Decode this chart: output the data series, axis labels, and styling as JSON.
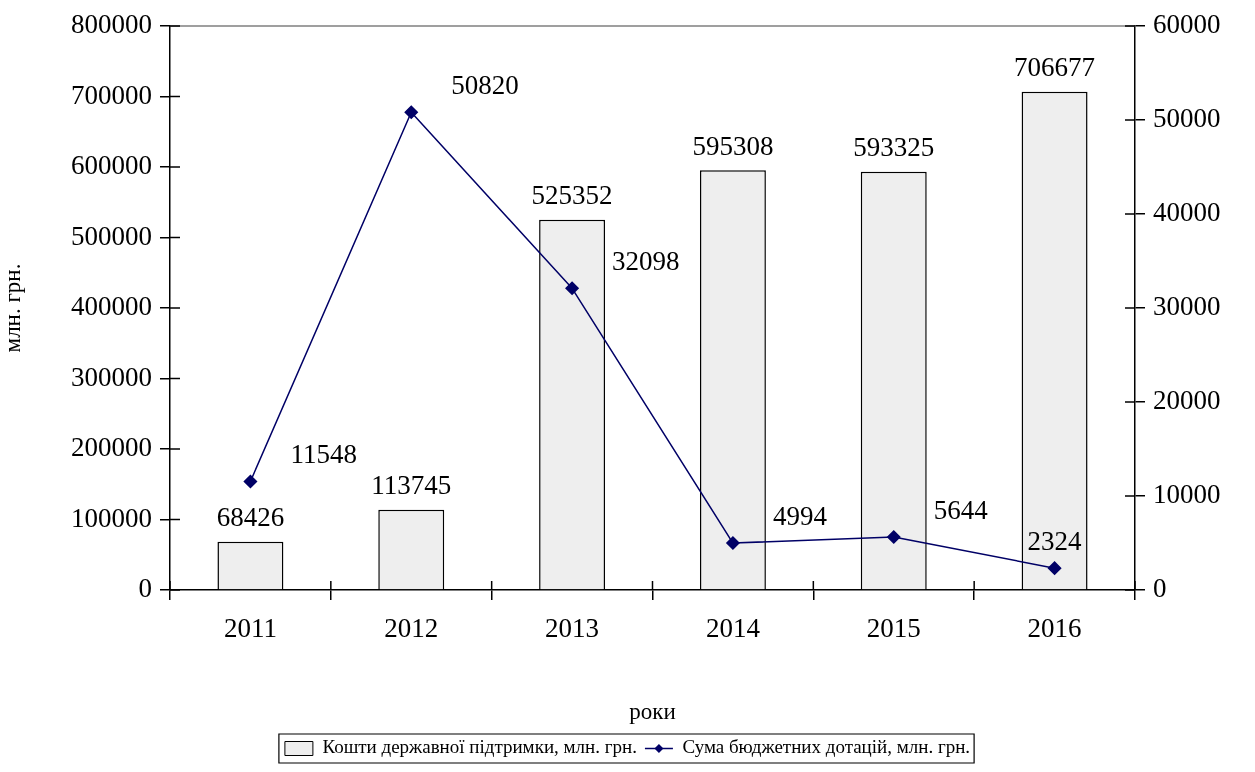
{
  "chart_data": {
    "type": "bar",
    "xlabel": "роки",
    "ylabel": "млн. грн.",
    "categories": [
      "2011",
      "2012",
      "2013",
      "2014",
      "2015",
      "2016"
    ],
    "ylim": [
      0,
      800000
    ],
    "yticks": [
      0,
      100000,
      200000,
      300000,
      400000,
      500000,
      600000,
      700000,
      800000
    ],
    "y2lim": [
      0,
      60000
    ],
    "y2ticks": [
      0,
      10000,
      20000,
      30000,
      40000,
      50000,
      60000
    ],
    "series": [
      {
        "name": "Кошти державної підтримки, млн. грн.",
        "color": "#eeeeee",
        "values": [
          68426,
          113745,
          525352,
          595308,
          593325,
          706677
        ]
      },
      {
        "name": "Сума бюджетних дотацій, млн. грн.",
        "type": "line",
        "axis": "y2",
        "color": "#000066",
        "values": [
          11548,
          50820,
          32098,
          4994,
          5644,
          2324
        ]
      }
    ],
    "data_labels": true,
    "legend": "bottom",
    "marker": "diamond"
  }
}
